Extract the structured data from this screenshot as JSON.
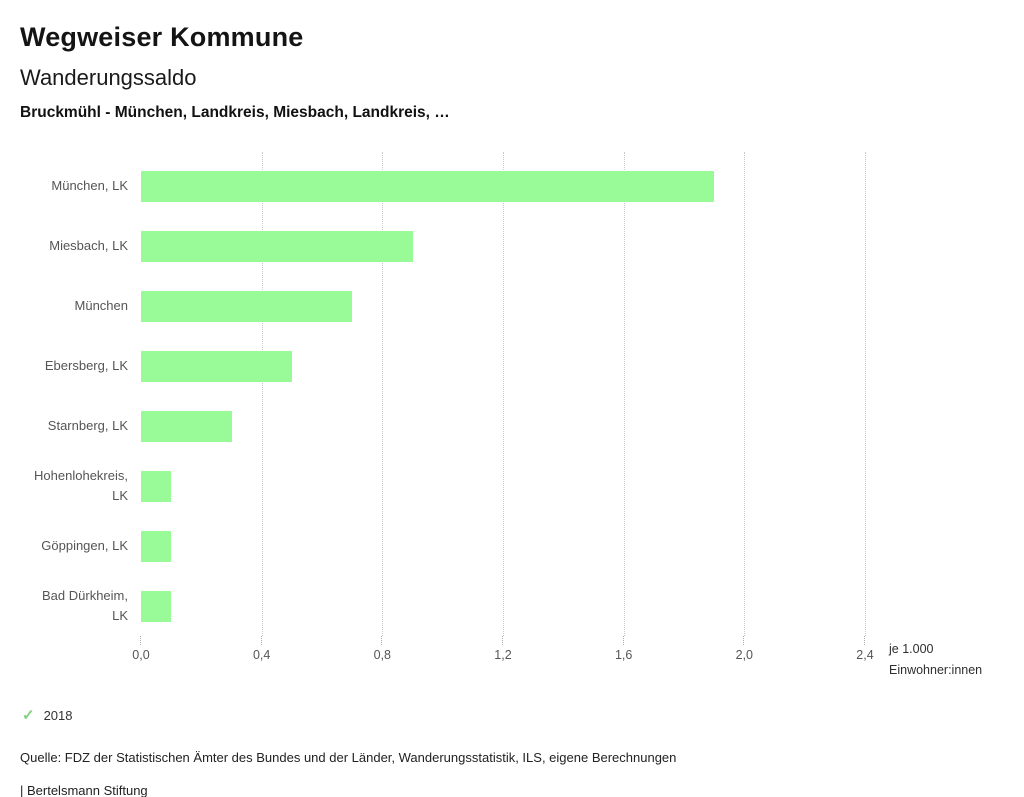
{
  "header": {
    "title": "Wegweiser Kommune",
    "subtitle": "Wanderungssaldo",
    "selection": "Bruckmühl - München, Landkreis, Miesbach, Landkreis, …"
  },
  "chart_data": {
    "type": "bar",
    "orientation": "horizontal",
    "title": "Wanderungssaldo",
    "subtitle": "Bruckmühl - München, Landkreis, Miesbach, Landkreis, …",
    "categories": [
      "München, LK",
      "Miesbach, LK",
      "München",
      "Ebersberg, LK",
      "Starnberg, LK",
      "Hohenlohekreis, LK",
      "Göppingen, LK",
      "Bad Dürkheim, LK"
    ],
    "values": [
      1.9,
      0.9,
      0.7,
      0.5,
      0.3,
      0.1,
      0.1,
      0.1
    ],
    "xlim": [
      0,
      2.4
    ],
    "xticks": [
      0,
      0.4,
      0.8,
      1.2,
      1.6,
      2.0,
      2.4
    ],
    "xtick_labels": [
      "0,0",
      "0,4",
      "0,8",
      "1,2",
      "1,6",
      "2,0",
      "2,4"
    ],
    "axis_unit_label": [
      "je 1.000",
      "Einwohner:innen"
    ],
    "bar_color": "#98fb98",
    "grid": "dotted-vertical",
    "legend_position": "bottom-left"
  },
  "legend": {
    "year": "2018",
    "check_color": "#82d182"
  },
  "footer": {
    "source": "Quelle: FDZ der Statistischen Ämter des Bundes und der Länder, Wanderungsstatistik, ILS, eigene Berechnungen",
    "brand": "| Bertelsmann Stiftung"
  }
}
